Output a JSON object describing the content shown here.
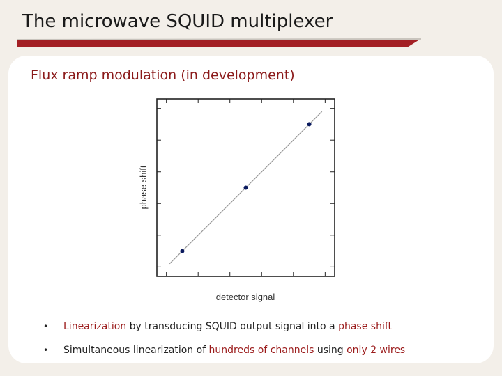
{
  "slide": {
    "title": "The microwave SQUID multiplexer",
    "subtitle": "Flux ramp modulation (in development)"
  },
  "colors": {
    "accent": "#a31f24",
    "background": "#f3efe9",
    "highlight_text": "#9b1b1b",
    "point": "#0a1a5e"
  },
  "chart_data": {
    "type": "scatter",
    "xlabel": "detector signal",
    "ylabel": "phase shift",
    "points": [
      {
        "x": 1,
        "y": 1
      },
      {
        "x": 2,
        "y": 2
      },
      {
        "x": 3,
        "y": 3
      }
    ],
    "fit_line": {
      "x": [
        0.8,
        3.2
      ],
      "y": [
        0.8,
        3.2
      ]
    },
    "xlim": [
      0.6,
      3.4
    ],
    "ylim": [
      0.6,
      3.4
    ],
    "tick_labels_shown": false
  },
  "bullets": [
    {
      "marker": "•",
      "segments": [
        {
          "text": "Linearization",
          "highlight": true
        },
        {
          "text": " by transducing SQUID output signal into a ",
          "highlight": false
        },
        {
          "text": "phase shift",
          "highlight": true
        }
      ]
    },
    {
      "marker": "•",
      "segments": [
        {
          "text": "Simultaneous linearization of ",
          "highlight": false
        },
        {
          "text": "hundreds of channels",
          "highlight": true
        },
        {
          "text": " using ",
          "highlight": false
        },
        {
          "text": "only 2 wires",
          "highlight": true
        }
      ]
    }
  ]
}
